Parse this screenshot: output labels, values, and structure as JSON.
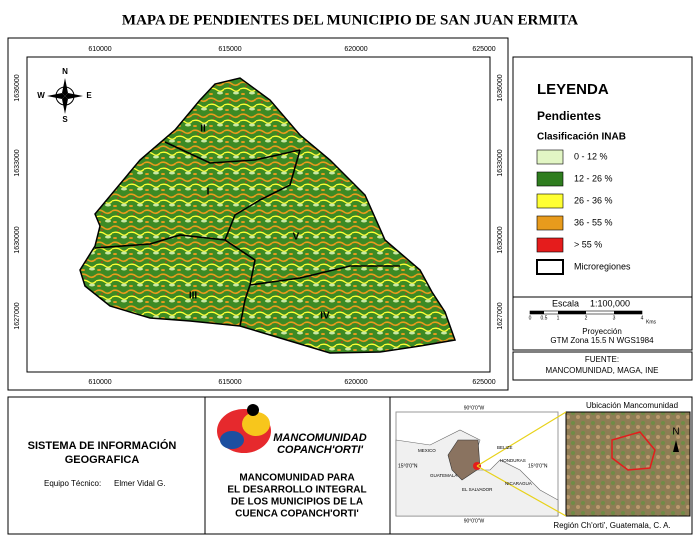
{
  "header": {
    "title": "MAPA DE PENDIENTES DEL MUNICIPIO DE SAN JUAN ERMITA"
  },
  "map": {
    "x_coords": [
      "610000",
      "615000",
      "620000",
      "625000"
    ],
    "y_coords": [
      "1636000",
      "1633000",
      "1630000",
      "1627000"
    ],
    "compass": {
      "n": "N",
      "s": "S",
      "e": "E",
      "w": "W"
    },
    "regions": [
      "I",
      "II",
      "III",
      "IV",
      "V"
    ]
  },
  "legend": {
    "title": "LEYENDA",
    "subtitle": "Pendientes",
    "classification": "Clasificación INAB",
    "items": [
      {
        "label": "0 - 12 %",
        "color": "#e2f6c4"
      },
      {
        "label": "12 - 26 %",
        "color": "#2f7d1f"
      },
      {
        "label": "26 - 36 %",
        "color": "#ffff33"
      },
      {
        "label": "36 - 55 %",
        "color": "#e89b1c"
      },
      {
        "label": "> 55 %",
        "color": "#e51c1c"
      },
      {
        "label": "Microregiones",
        "color": "#ffffff"
      }
    ],
    "scale": {
      "label": "Escala",
      "value": "1:100,000",
      "ticks": [
        "0",
        "0.5",
        "1",
        "2",
        "3",
        "4"
      ],
      "unit": "Kms"
    },
    "projection": {
      "label": "Proyección",
      "value": "GTM Zona 15.5 N WGS1984"
    },
    "source": {
      "label": "FUENTE:",
      "value": "MANCOMUNIDAD, MAGA, INE"
    }
  },
  "info": {
    "system": [
      "SISTEMA DE INFORMACIÓN",
      "GEOGRAFICA"
    ],
    "team_label": "Equipo Técnico:",
    "team": "Elmer Vidal G."
  },
  "logo": {
    "name": "MANCOMUNIDAD",
    "name2": "COPANCH'ORTI'",
    "description": [
      "MANCOMUNIDAD PARA",
      "EL DESARROLLO INTEGRAL",
      "DE LOS MUNICIPIOS DE LA",
      "CUENCA COPANCH'ORTI'"
    ]
  },
  "location": {
    "title": "Ubicación Mancomunidad",
    "caption": "Región Ch'orti', Guatemala, C. A.",
    "north": "N",
    "lon_label": "90°0'0\"W",
    "lat_label": "15°0'0\"N",
    "countries": [
      "MEXICO",
      "BELIZE",
      "HONDURAS",
      "GUATEMALA",
      "EL SALVADOR",
      "NICARAGUA"
    ]
  }
}
